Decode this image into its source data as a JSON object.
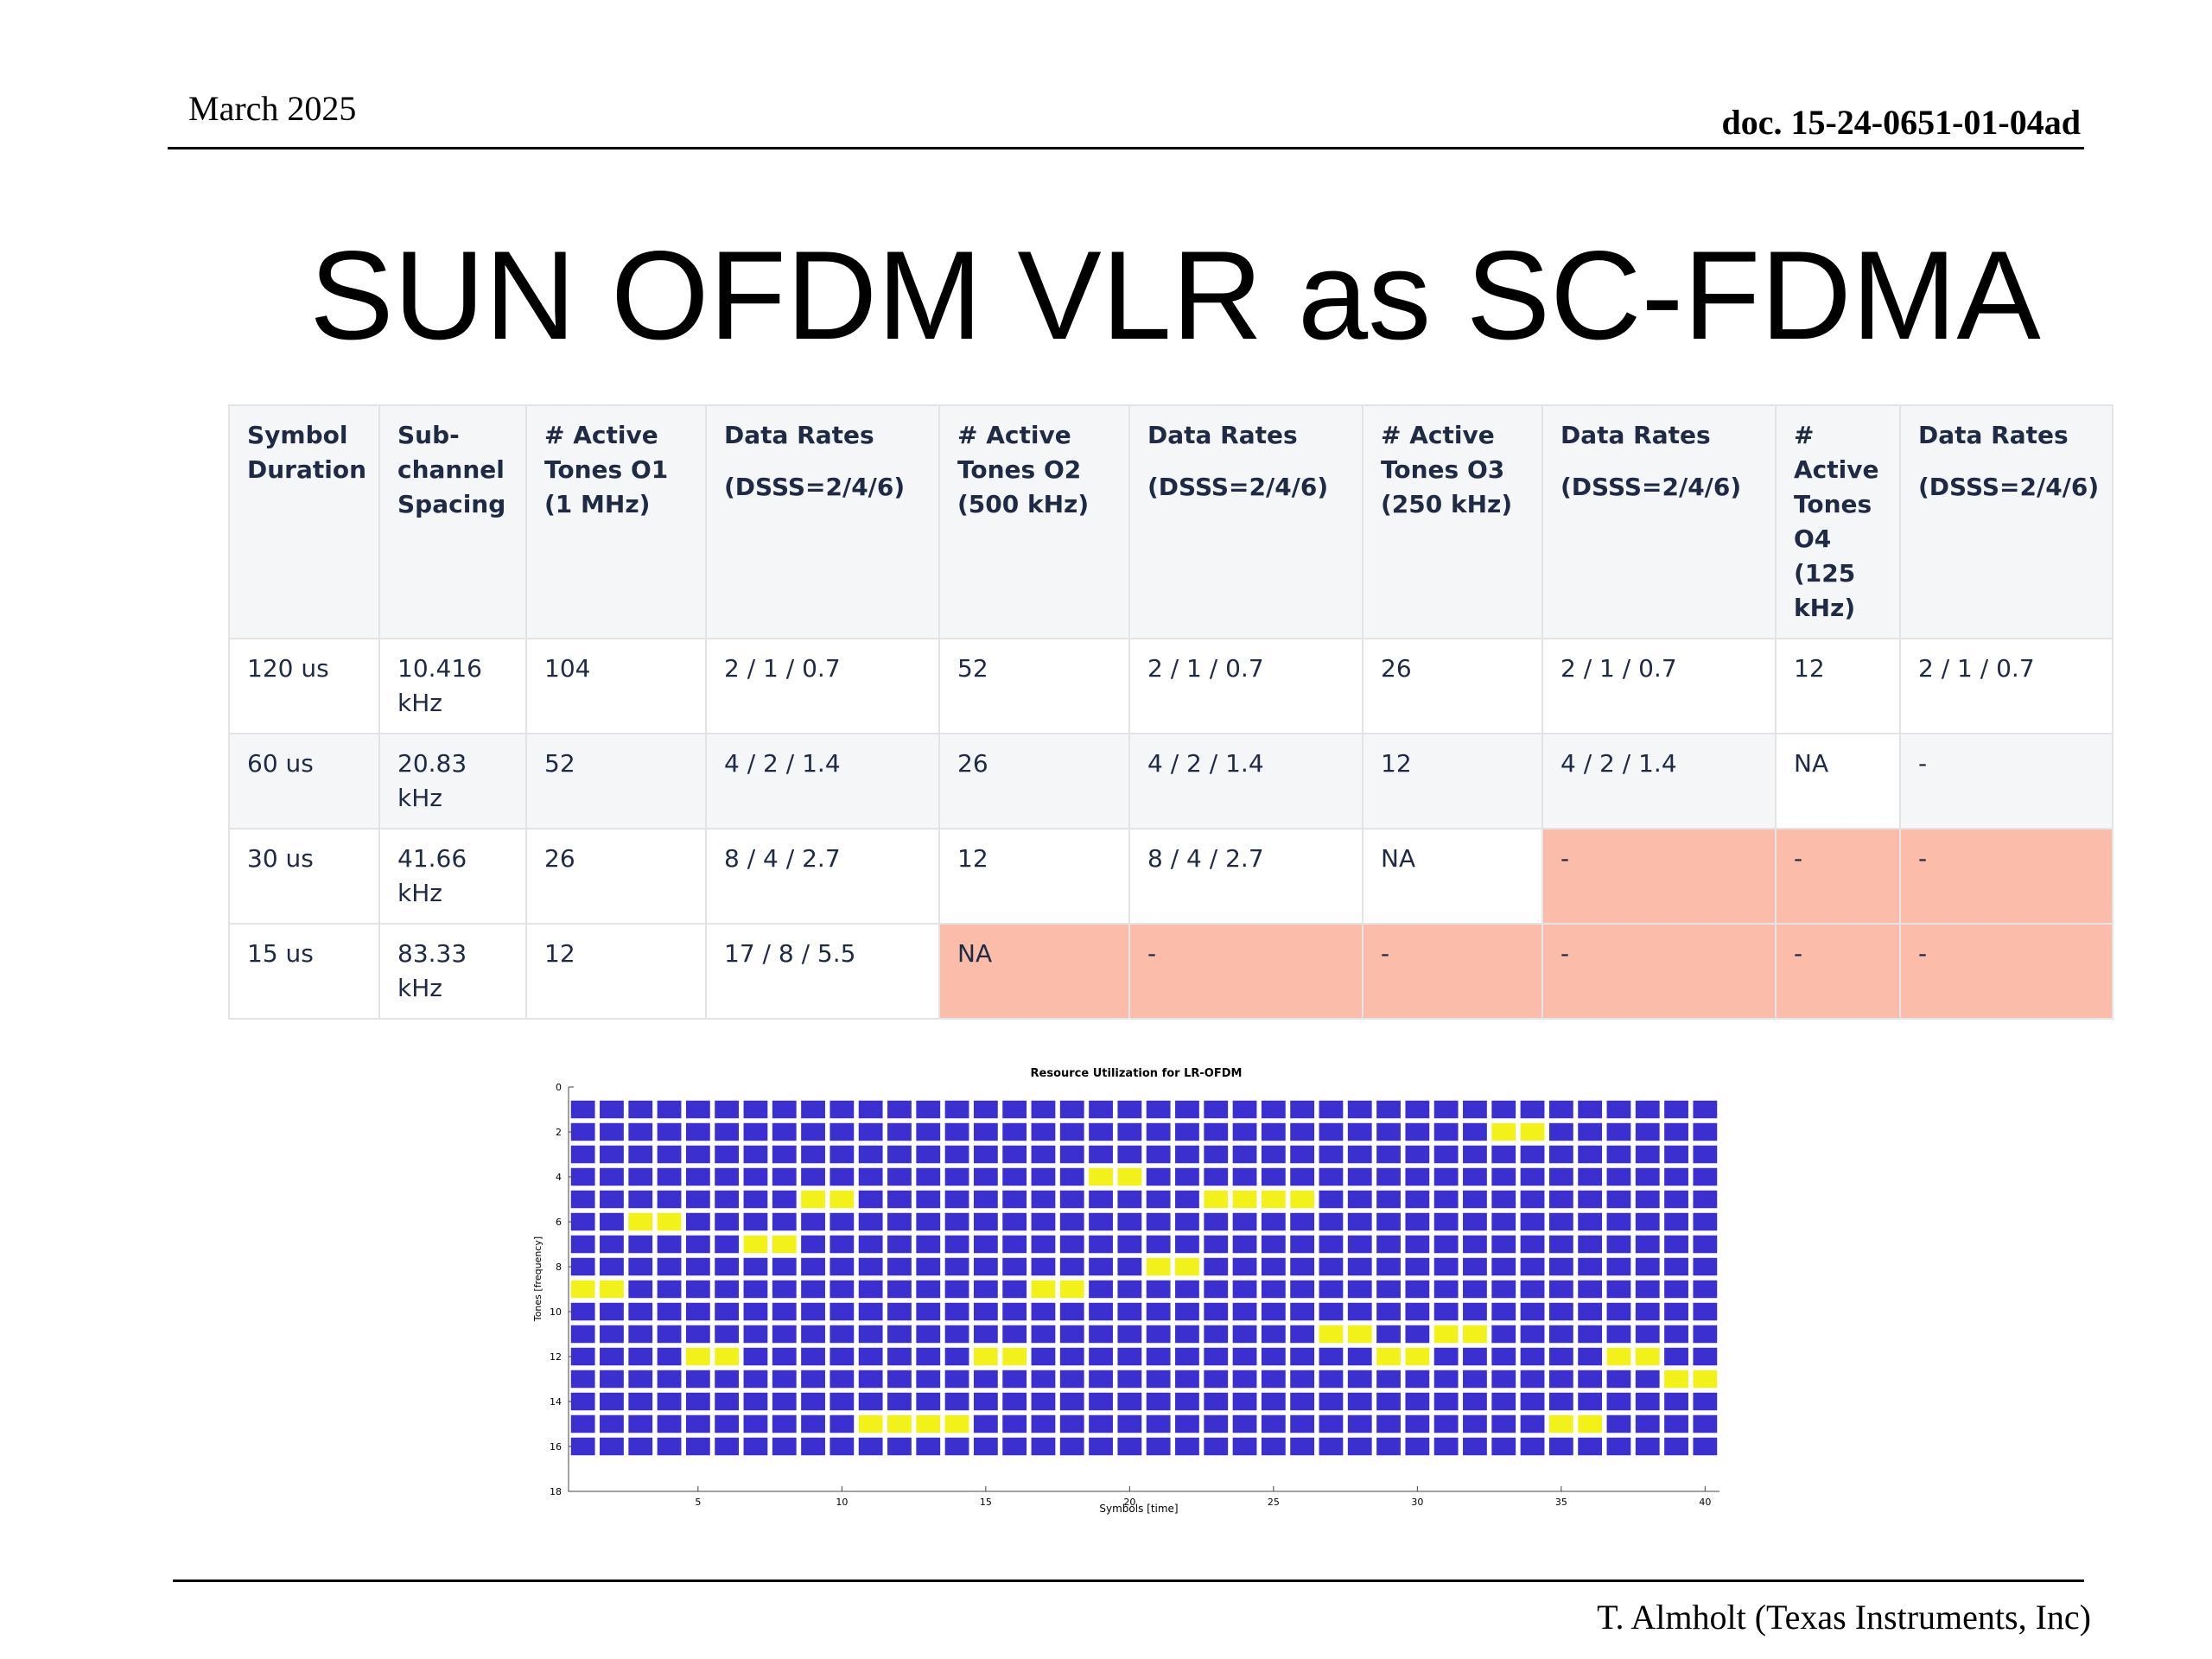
{
  "header": {
    "date": "March 2025",
    "doc_id": "doc. 15-24-0651-01-04ad"
  },
  "title": "SUN OFDM VLR as SC-FDMA",
  "table": {
    "headers": [
      {
        "label": "Symbol Duration",
        "sub": ""
      },
      {
        "label": "Sub-channel Spacing",
        "sub": ""
      },
      {
        "label": "# Active Tones O1 (1 MHz)",
        "sub": ""
      },
      {
        "label": "Data Rates",
        "sub": "(DSSS=2/4/6)"
      },
      {
        "label": "# Active Tones O2 (500 kHz)",
        "sub": ""
      },
      {
        "label": "Data Rates",
        "sub": "(DSSS=2/4/6)"
      },
      {
        "label": "# Active Tones O3 (250 kHz)",
        "sub": ""
      },
      {
        "label": "Data Rates",
        "sub": "(DSSS=2/4/6)"
      },
      {
        "label": "# Active Tones O4 (125 kHz)",
        "sub": ""
      },
      {
        "label": "Data Rates",
        "sub": "(DSSS=2/4/6)"
      }
    ],
    "rows": [
      [
        "120 us",
        "10.416 kHz",
        "104",
        "2 / 1 / 0.7",
        "52",
        "2 / 1 / 0.7",
        "26",
        "2 / 1 / 0.7",
        "12",
        "2 / 1 / 0.7"
      ],
      [
        "60 us",
        "20.83 kHz",
        "52",
        "4 / 2 / 1.4",
        "26",
        "4 / 2 / 1.4",
        "12",
        "4 / 2 / 1.4",
        "NA",
        "-"
      ],
      [
        "30 us",
        "41.66 kHz",
        "26",
        "8 / 4 / 2.7",
        "12",
        "8 / 4 / 2.7",
        "NA",
        "-",
        "-",
        "-"
      ],
      [
        "15 us",
        "83.33 kHz",
        "12",
        "17 / 8 / 5.5",
        "NA",
        "-",
        "-",
        "-",
        "-",
        "-"
      ]
    ],
    "highlight_color": "#fbbcaa"
  },
  "chart_data": {
    "type": "heatmap",
    "title": "Resource Utilization for LR-OFDM",
    "xlabel": "Symbols [time]",
    "ylabel": "Tones [frequency]",
    "xlim": [
      0.5,
      40.5
    ],
    "ylim": [
      0,
      18
    ],
    "y_reversed": true,
    "x_ticks": [
      5,
      10,
      15,
      20,
      25,
      30,
      35,
      40
    ],
    "y_ticks": [
      0,
      2,
      4,
      6,
      8,
      10,
      12,
      14,
      16,
      18
    ],
    "rows": [
      1,
      16
    ],
    "cols": [
      1,
      40
    ],
    "empty_color": "#3b2fd0",
    "active_color": "#f2f21a",
    "active_cells": [
      [
        1,
        9
      ],
      [
        2,
        9
      ],
      [
        3,
        6
      ],
      [
        4,
        6
      ],
      [
        5,
        12
      ],
      [
        6,
        12
      ],
      [
        7,
        7
      ],
      [
        8,
        7
      ],
      [
        9,
        5
      ],
      [
        10,
        5
      ],
      [
        11,
        15
      ],
      [
        12,
        15
      ],
      [
        13,
        15
      ],
      [
        14,
        15
      ],
      [
        15,
        12
      ],
      [
        16,
        12
      ],
      [
        17,
        9
      ],
      [
        18,
        9
      ],
      [
        19,
        4
      ],
      [
        20,
        4
      ],
      [
        21,
        8
      ],
      [
        22,
        8
      ],
      [
        23,
        5
      ],
      [
        24,
        5
      ],
      [
        25,
        5
      ],
      [
        26,
        5
      ],
      [
        27,
        11
      ],
      [
        28,
        11
      ],
      [
        29,
        12
      ],
      [
        30,
        12
      ],
      [
        31,
        11
      ],
      [
        32,
        11
      ],
      [
        33,
        2
      ],
      [
        34,
        2
      ],
      [
        35,
        15
      ],
      [
        36,
        15
      ],
      [
        37,
        12
      ],
      [
        38,
        12
      ],
      [
        39,
        13
      ],
      [
        40,
        13
      ]
    ]
  },
  "footer": "T. Almholt (Texas Instruments, Inc)"
}
